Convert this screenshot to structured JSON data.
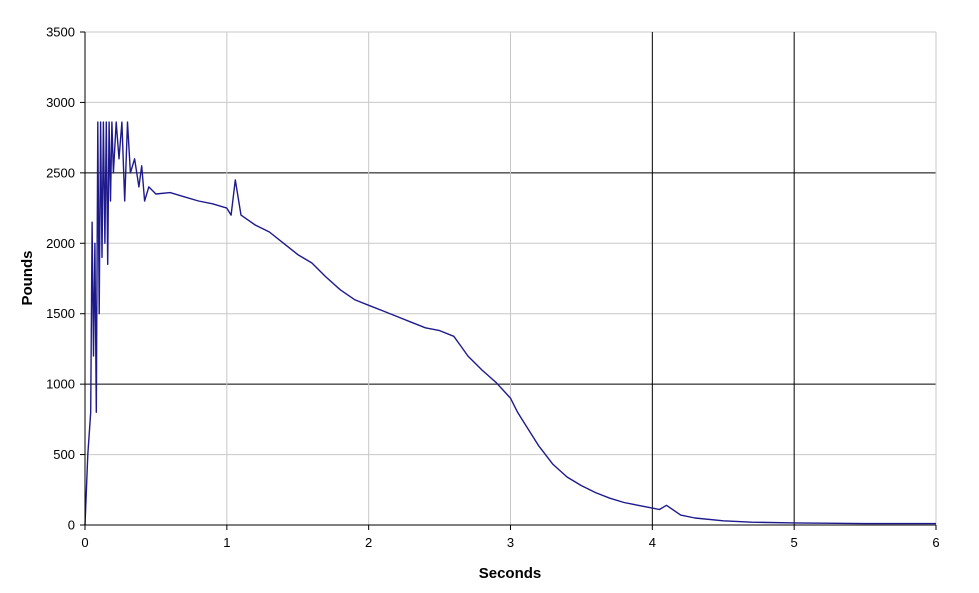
{
  "chart_data": {
    "type": "line",
    "title": "",
    "xlabel": "Seconds",
    "ylabel": "Pounds",
    "xlim": [
      0,
      6
    ],
    "ylim": [
      0,
      3500
    ],
    "x_ticks": [
      0,
      1,
      2,
      3,
      4,
      5,
      6
    ],
    "y_ticks": [
      0,
      500,
      1000,
      1500,
      2000,
      2500,
      3000,
      3500
    ],
    "grid": true,
    "legend": "none",
    "colors": {
      "series": "#1f1a8c",
      "major_grid": "#000000",
      "minor_grid": "#c8c8c8"
    },
    "series": [
      {
        "x": [
          0,
          0.02,
          0.04,
          0.05,
          0.06,
          0.07,
          0.08,
          0.09,
          0.1,
          0.11,
          0.12,
          0.13,
          0.14,
          0.15,
          0.16,
          0.17,
          0.18,
          0.19,
          0.2,
          0.22,
          0.24,
          0.26,
          0.28,
          0.3,
          0.32,
          0.35,
          0.38,
          0.4,
          0.42,
          0.45,
          0.5,
          0.6,
          0.7,
          0.8,
          0.9,
          1.0,
          1.03,
          1.06,
          1.1,
          1.2,
          1.3,
          1.4,
          1.5,
          1.6,
          1.7,
          1.8,
          1.9,
          2.0,
          2.1,
          2.2,
          2.3,
          2.4,
          2.5,
          2.6,
          2.65,
          2.7,
          2.8,
          2.9,
          3.0,
          3.05,
          3.1,
          3.2,
          3.3,
          3.4,
          3.5,
          3.6,
          3.7,
          3.8,
          3.9,
          4.0,
          4.05,
          4.1,
          4.2,
          4.3,
          4.5,
          4.7,
          5.0,
          5.5,
          6.0
        ],
        "y": [
          0,
          500,
          800,
          2150,
          1200,
          2000,
          800,
          2860,
          1500,
          2860,
          1900,
          2860,
          2000,
          2860,
          1850,
          2860,
          2300,
          2860,
          2500,
          2860,
          2600,
          2860,
          2300,
          2860,
          2500,
          2600,
          2400,
          2550,
          2300,
          2400,
          2350,
          2360,
          2330,
          2300,
          2280,
          2250,
          2200,
          2450,
          2200,
          2130,
          2080,
          2000,
          1920,
          1860,
          1760,
          1670,
          1600,
          1560,
          1520,
          1480,
          1440,
          1400,
          1380,
          1340,
          1270,
          1200,
          1100,
          1010,
          900,
          800,
          720,
          560,
          430,
          340,
          280,
          230,
          190,
          160,
          140,
          120,
          110,
          140,
          70,
          50,
          30,
          20,
          15,
          10,
          10
        ]
      }
    ]
  }
}
